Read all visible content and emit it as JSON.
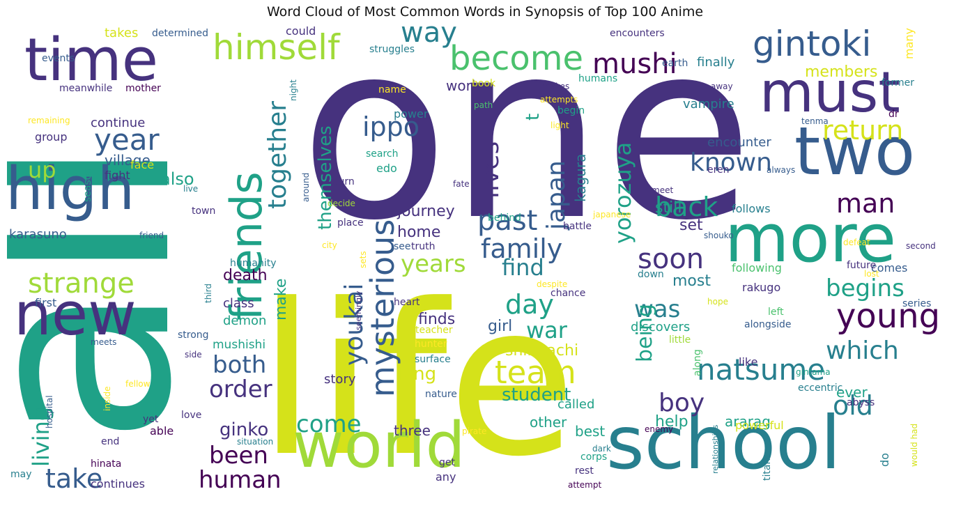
{
  "title": "Word Cloud of Most Common Words in Synopsis of Top 100 Anime",
  "colors": {
    "c1": "#440154",
    "c2": "#46327e",
    "c3": "#365c8d",
    "c4": "#277f8e",
    "c5": "#1fa187",
    "c6": "#4ac16d",
    "c7": "#a0da39",
    "c8": "#d5e21a",
    "c9": "#fde725"
  },
  "words": [
    {
      "text": "one",
      "c": "c2"
    },
    {
      "text": "life",
      "c": "c8"
    },
    {
      "text": "all",
      "c": "c5"
    },
    {
      "text": "world",
      "c": "c7"
    },
    {
      "text": "school",
      "c": "c4"
    },
    {
      "text": "two",
      "c": "c3"
    },
    {
      "text": "more",
      "c": "c5"
    },
    {
      "text": "time",
      "c": "c2"
    },
    {
      "text": "high",
      "c": "c3"
    },
    {
      "text": "new",
      "c": "c2"
    },
    {
      "text": "friends",
      "c": "c5"
    },
    {
      "text": "must",
      "c": "c2"
    },
    {
      "text": "gintoki",
      "c": "c3"
    },
    {
      "text": "himself",
      "c": "c7"
    },
    {
      "text": "become",
      "c": "c6"
    },
    {
      "text": "mushi",
      "c": "c1"
    },
    {
      "text": "way",
      "c": "c4"
    },
    {
      "text": "mysterious",
      "c": "c3"
    },
    {
      "text": "year",
      "c": "c3"
    },
    {
      "text": "strange",
      "c": "c7"
    },
    {
      "text": "team",
      "c": "c8"
    },
    {
      "text": "natsume",
      "c": "c4"
    },
    {
      "text": "young",
      "c": "c1"
    },
    {
      "text": "past",
      "c": "c3"
    },
    {
      "text": "soon",
      "c": "c2"
    },
    {
      "text": "return",
      "c": "c8"
    },
    {
      "text": "together",
      "c": "c4"
    },
    {
      "text": "themselves",
      "c": "c5"
    },
    {
      "text": "yorozuya",
      "c": "c5"
    },
    {
      "text": "known",
      "c": "c3"
    },
    {
      "text": "back",
      "c": "c5"
    },
    {
      "text": "man",
      "c": "c1"
    },
    {
      "text": "family",
      "c": "c3"
    },
    {
      "text": "ippo",
      "c": "c3"
    },
    {
      "text": "youkai",
      "c": "c3"
    },
    {
      "text": "japan",
      "c": "c3"
    },
    {
      "text": "lives",
      "c": "c2"
    },
    {
      "text": "years",
      "c": "c7"
    },
    {
      "text": "find",
      "c": "c4"
    },
    {
      "text": "day",
      "c": "c5"
    },
    {
      "text": "war",
      "c": "c5"
    },
    {
      "text": "begins",
      "c": "c5"
    },
    {
      "text": "was",
      "c": "c4"
    },
    {
      "text": "which",
      "c": "c4"
    },
    {
      "text": "old",
      "c": "c4"
    },
    {
      "text": "boy",
      "c": "c2"
    },
    {
      "text": "being",
      "c": "c5"
    },
    {
      "text": "both",
      "c": "c3"
    },
    {
      "text": "order",
      "c": "c2"
    },
    {
      "text": "come",
      "c": "c5"
    },
    {
      "text": "human",
      "c": "c1"
    },
    {
      "text": "take",
      "c": "c3"
    },
    {
      "text": "been",
      "c": "c1"
    },
    {
      "text": "living",
      "c": "c5"
    },
    {
      "text": "up",
      "c": "c7"
    },
    {
      "text": "also",
      "c": "c5"
    },
    {
      "text": "student",
      "c": "c5"
    },
    {
      "text": "long",
      "c": "c8"
    },
    {
      "text": "journey",
      "c": "c2"
    },
    {
      "text": "home",
      "c": "c2"
    },
    {
      "text": "ginko",
      "c": "c2"
    },
    {
      "text": "mushishi",
      "c": "c5"
    },
    {
      "text": "shinpachi",
      "c": "c8"
    },
    {
      "text": "kagura",
      "c": "c4"
    },
    {
      "text": "finds",
      "c": "c2"
    },
    {
      "text": "girl",
      "c": "c3"
    },
    {
      "text": "members",
      "c": "c8"
    },
    {
      "text": "work",
      "c": "c2"
    },
    {
      "text": "vampire",
      "c": "c4"
    },
    {
      "text": "finally",
      "c": "c4"
    },
    {
      "text": "encounter",
      "c": "c3"
    },
    {
      "text": "still",
      "c": "c5"
    },
    {
      "text": "follows",
      "c": "c4"
    },
    {
      "text": "set",
      "c": "c2"
    },
    {
      "text": "most",
      "c": "c4"
    },
    {
      "text": "following",
      "c": "c6"
    },
    {
      "text": "comes",
      "c": "c3"
    },
    {
      "text": "future",
      "c": "c2"
    },
    {
      "text": "discovers",
      "c": "c5"
    },
    {
      "text": "help",
      "c": "c5"
    },
    {
      "text": "ararag",
      "c": "c5"
    },
    {
      "text": "powerful",
      "c": "c8"
    },
    {
      "text": "ever",
      "c": "c5"
    },
    {
      "text": "best",
      "c": "c5"
    },
    {
      "text": "other",
      "c": "c5"
    },
    {
      "text": "called",
      "c": "c5"
    },
    {
      "text": "three",
      "c": "c2"
    },
    {
      "text": "story",
      "c": "c2"
    },
    {
      "text": "make",
      "c": "c5"
    },
    {
      "text": "death",
      "c": "c1"
    },
    {
      "text": "class",
      "c": "c2"
    },
    {
      "text": "demon",
      "c": "c5"
    },
    {
      "text": "village",
      "c": "c3"
    },
    {
      "text": "continue",
      "c": "c2"
    },
    {
      "text": "group",
      "c": "c2"
    },
    {
      "text": "fight",
      "c": "c2"
    },
    {
      "text": "karasuno",
      "c": "c3"
    },
    {
      "text": "takes",
      "c": "c8"
    },
    {
      "text": "determined",
      "c": "c3"
    },
    {
      "text": "could",
      "c": "c2"
    },
    {
      "text": "struggles",
      "c": "c4"
    },
    {
      "text": "encounters",
      "c": "c2"
    },
    {
      "text": "earth",
      "c": "c3"
    },
    {
      "text": "many",
      "c": "c9"
    },
    {
      "text": "former",
      "c": "c4"
    },
    {
      "text": "events",
      "c": "c3"
    },
    {
      "text": "meanwhile",
      "c": "c2"
    },
    {
      "text": "mother",
      "c": "c1"
    },
    {
      "text": "humans",
      "c": "c5"
    },
    {
      "text": "night",
      "c": "c4"
    },
    {
      "text": "name",
      "c": "c9"
    },
    {
      "text": "book",
      "c": "c8"
    },
    {
      "text": "makes",
      "c": "c2"
    },
    {
      "text": "away",
      "c": "c2"
    },
    {
      "text": "power",
      "c": "c4"
    },
    {
      "text": "path",
      "c": "c6"
    },
    {
      "text": "attempts",
      "c": "c9"
    },
    {
      "text": "begin",
      "c": "c5"
    },
    {
      "text": "light",
      "c": "c9"
    },
    {
      "text": "dr",
      "c": "c1"
    },
    {
      "text": "tenma",
      "c": "c3"
    },
    {
      "text": "search",
      "c": "c5"
    },
    {
      "text": "edo",
      "c": "c5"
    },
    {
      "text": "eren",
      "c": "c2"
    },
    {
      "text": "always",
      "c": "c3"
    },
    {
      "text": "remaining",
      "c": "c9"
    },
    {
      "text": "season",
      "c": "c5"
    },
    {
      "text": "face",
      "c": "c8"
    },
    {
      "text": "live",
      "c": "c4"
    },
    {
      "text": "around",
      "c": "c3"
    },
    {
      "text": "turn",
      "c": "c2"
    },
    {
      "text": "decide",
      "c": "c7"
    },
    {
      "text": "fate",
      "c": "c2"
    },
    {
      "text": "meet",
      "c": "c2"
    },
    {
      "text": "town",
      "c": "c2"
    },
    {
      "text": "friend",
      "c": "c3"
    },
    {
      "text": "place",
      "c": "c2"
    },
    {
      "text": "japanese",
      "c": "c9"
    },
    {
      "text": "behind",
      "c": "c5"
    },
    {
      "text": "battle",
      "c": "c2"
    },
    {
      "text": "shouko",
      "c": "c3"
    },
    {
      "text": "city",
      "c": "c9"
    },
    {
      "text": "see",
      "c": "c3"
    },
    {
      "text": "truth",
      "c": "c2"
    },
    {
      "text": "humanity",
      "c": "c4"
    },
    {
      "text": "sets",
      "c": "c9"
    },
    {
      "text": "defeat",
      "c": "c9"
    },
    {
      "text": "second",
      "c": "c2"
    },
    {
      "text": "down",
      "c": "c4"
    },
    {
      "text": "despite",
      "c": "c9"
    },
    {
      "text": "rakugo",
      "c": "c2"
    },
    {
      "text": "lost",
      "c": "c9"
    },
    {
      "text": "first",
      "c": "c3"
    },
    {
      "text": "third",
      "c": "c4"
    },
    {
      "text": "seemingly",
      "c": "c2"
    },
    {
      "text": "heart",
      "c": "c2"
    },
    {
      "text": "chance",
      "c": "c2"
    },
    {
      "text": "hope",
      "c": "c8"
    },
    {
      "text": "series",
      "c": "c3"
    },
    {
      "text": "left",
      "c": "c6"
    },
    {
      "text": "alongside",
      "c": "c3"
    },
    {
      "text": "teacher",
      "c": "c8"
    },
    {
      "text": "strong",
      "c": "c3"
    },
    {
      "text": "little",
      "c": "c7"
    },
    {
      "text": "meets",
      "c": "c3"
    },
    {
      "text": "hunter",
      "c": "c9"
    },
    {
      "text": "side",
      "c": "c2"
    },
    {
      "text": "surface",
      "c": "c4"
    },
    {
      "text": "along",
      "c": "c6"
    },
    {
      "text": "like",
      "c": "c2"
    },
    {
      "text": "gintama",
      "c": "c5"
    },
    {
      "text": "hospital",
      "c": "c3"
    },
    {
      "text": "inside",
      "c": "c9"
    },
    {
      "text": "fellow",
      "c": "c9"
    },
    {
      "text": "nature",
      "c": "c3"
    },
    {
      "text": "eccentric",
      "c": "c4"
    },
    {
      "text": "abyss",
      "c": "c2"
    },
    {
      "text": "yet",
      "c": "c2"
    },
    {
      "text": "love",
      "c": "c2"
    },
    {
      "text": "able",
      "c": "c1"
    },
    {
      "text": "pirate",
      "c": "c9"
    },
    {
      "text": "dark",
      "c": "c4"
    },
    {
      "text": "enemy",
      "c": "c1"
    },
    {
      "text": "relationships",
      "c": "c4"
    },
    {
      "text": "titans",
      "c": "c4"
    },
    {
      "text": "would had",
      "c": "c8"
    },
    {
      "text": "end",
      "c": "c2"
    },
    {
      "text": "situation",
      "c": "c4"
    },
    {
      "text": "corps",
      "c": "c5"
    },
    {
      "text": "rest",
      "c": "c2"
    },
    {
      "text": "attempt",
      "c": "c1"
    },
    {
      "text": "do",
      "c": "c4"
    },
    {
      "text": "get",
      "c": "c2"
    },
    {
      "text": "any",
      "c": "c2"
    },
    {
      "text": "hinata",
      "c": "c1"
    },
    {
      "text": "may",
      "c": "c4"
    },
    {
      "text": "continues",
      "c": "c2"
    },
    {
      "text": "t",
      "c": "c5"
    }
  ]
}
